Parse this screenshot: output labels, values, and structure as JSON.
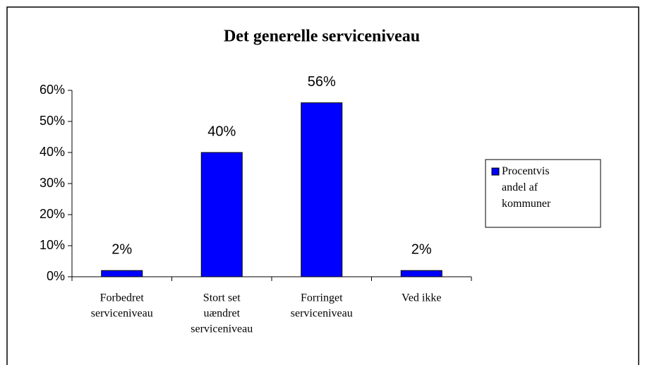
{
  "chart_data": {
    "type": "bar",
    "title": "Det generelle serviceniveau",
    "categories": [
      [
        "Forbedret",
        "serviceniveau"
      ],
      [
        "Stort set",
        "uændret",
        "serviceniveau"
      ],
      [
        "Forringet",
        "serviceniveau"
      ],
      [
        "Ved ikke"
      ]
    ],
    "series": [
      {
        "name": "Procentvis andel af kommuner",
        "color": "#0000ff",
        "values": [
          2,
          40,
          56,
          2
        ],
        "value_labels": [
          "2%",
          "40%",
          "56%",
          "2%"
        ]
      }
    ],
    "ylim": [
      0,
      60
    ],
    "yticks": [
      {
        "value": 0,
        "label": "0%"
      },
      {
        "value": 10,
        "label": "10%"
      },
      {
        "value": 20,
        "label": "20%"
      },
      {
        "value": 30,
        "label": "30%"
      },
      {
        "value": 40,
        "label": "40%"
      },
      {
        "value": 50,
        "label": "50%"
      },
      {
        "value": 60,
        "label": "60%"
      }
    ],
    "grid": false,
    "legend": "right"
  }
}
